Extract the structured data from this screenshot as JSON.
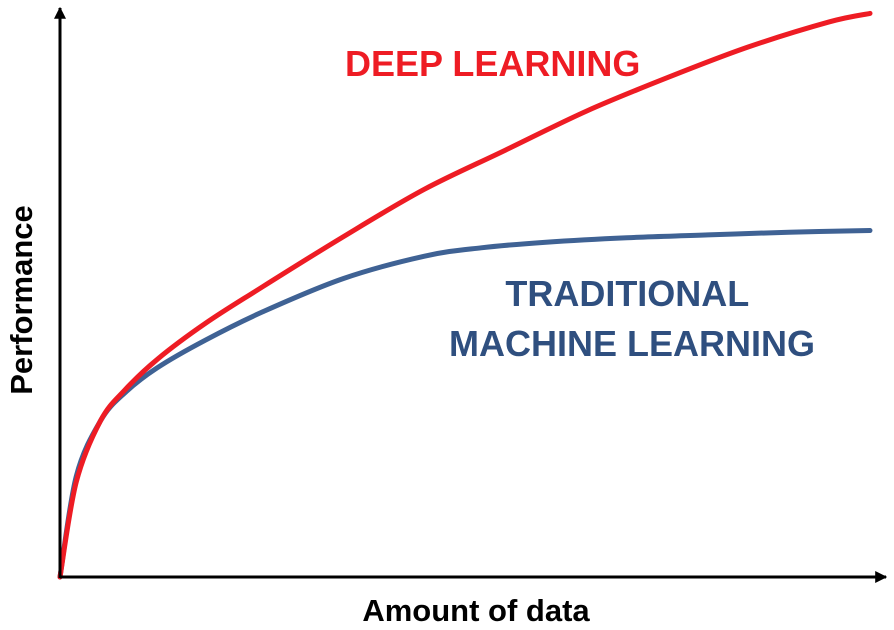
{
  "chart_data": {
    "type": "line",
    "title": "",
    "xlabel": "Amount of data",
    "ylabel": "Performance",
    "xlim": [
      0,
      100
    ],
    "ylim": [
      0,
      100
    ],
    "grid": false,
    "legend": "none",
    "series": [
      {
        "name": "DEEP LEARNING",
        "color": "#ee1c24",
        "x": [
          0,
          2,
          5,
          8,
          12,
          18,
          25,
          35,
          45,
          55,
          65,
          75,
          85,
          95,
          100
        ],
        "y": [
          0,
          17,
          28,
          33.5,
          39,
          45.5,
          52,
          61,
          69.5,
          76.5,
          83.5,
          89.5,
          95,
          99.5,
          101
        ]
      },
      {
        "name": "TRADITIONAL MACHINE LEARNING",
        "color": "#3f6294",
        "x": [
          0,
          2,
          5,
          8,
          12,
          18,
          25,
          35,
          45,
          52,
          60,
          70,
          80,
          90,
          100
        ],
        "y": [
          0,
          18,
          28,
          33,
          37.5,
          42.5,
          47.5,
          53.5,
          57.5,
          59,
          60,
          60.8,
          61.3,
          61.8,
          62.1
        ]
      }
    ]
  }
}
